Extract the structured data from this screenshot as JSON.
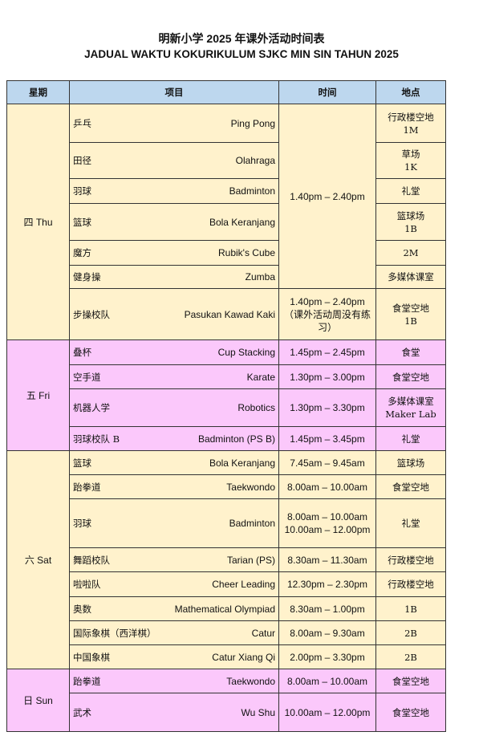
{
  "title_zh": "明新小学 2025 年课外活动时间表",
  "title_ms": "JADUAL WAKTU KOKURIKULUM SJKC MIN SIN TAHUN 2025",
  "headers": {
    "day": "星期",
    "activity": "项目",
    "time": "时间",
    "location": "地点"
  },
  "colors": {
    "header": "#bdd7ee",
    "cream": "#fff2cc",
    "pink": "#fbc8fb"
  },
  "days": [
    {
      "label": "四 Thu",
      "color": "cream",
      "rows": [
        {
          "zh": "乒乓",
          "ms": "Ping Pong",
          "time": "1.40pm – 2.40pm",
          "time_span": 6,
          "loc": "行政楼空地\n1M"
        },
        {
          "zh": "田径",
          "ms": "Olahraga",
          "loc": "草场\n1K"
        },
        {
          "zh": "羽球",
          "ms": "Badminton",
          "loc": "礼堂"
        },
        {
          "zh": "篮球",
          "ms": "Bola Keranjang",
          "loc": "篮球场\n1B"
        },
        {
          "zh": "魔方",
          "ms": "Rubik's Cube",
          "loc": "2M"
        },
        {
          "zh": "健身操",
          "ms": "Zumba",
          "loc": "多媒体课室"
        },
        {
          "zh": "步操校队",
          "ms": "Pasukan Kawad Kaki",
          "time": "1.40pm – 2.40pm\n（课外活动周没有练习）",
          "loc": "食堂空地\n1B"
        }
      ]
    },
    {
      "label": "五 Fri",
      "color": "pink",
      "rows": [
        {
          "zh": "叠杯",
          "ms": "Cup Stacking",
          "time": "1.45pm – 2.45pm",
          "loc": "食堂"
        },
        {
          "zh": "空手道",
          "ms": "Karate",
          "time": "1.30pm – 3.00pm",
          "loc": "食堂空地"
        },
        {
          "zh": "机器人学",
          "ms": "Robotics",
          "time": "1.30pm – 3.30pm",
          "loc": "多媒体课室\nMaker Lab"
        },
        {
          "zh": "羽球校队 B",
          "ms": "Badminton (PS B)",
          "time": "1.45pm – 3.45pm",
          "loc": "礼堂"
        }
      ]
    },
    {
      "label": "六 Sat",
      "color": "cream",
      "rows": [
        {
          "zh": "篮球",
          "ms": "Bola Keranjang",
          "time": "7.45am – 9.45am",
          "loc": "篮球场"
        },
        {
          "zh": "跆拳道",
          "ms": "Taekwondo",
          "time": "8.00am – 10.00am",
          "loc": "食堂空地"
        },
        {
          "zh": "羽球",
          "ms": "Badminton",
          "time": "8.00am – 10.00am\n10.00am – 12.00pm",
          "loc": "礼堂"
        },
        {
          "zh": "舞蹈校队",
          "ms": "Tarian (PS)",
          "time": "8.30am – 11.30am",
          "loc": "行政楼空地"
        },
        {
          "zh": "啦啦队",
          "ms": "Cheer Leading",
          "time": "12.30pm – 2.30pm",
          "loc": "行政楼空地"
        },
        {
          "zh": "奥数",
          "ms": "Mathematical Olympiad",
          "time": "8.30am – 1.00pm",
          "loc": "1B"
        },
        {
          "zh": "国际象棋（西洋棋）",
          "ms": "Catur",
          "time": "8.00am – 9.30am",
          "loc": "2B"
        },
        {
          "zh": "中国象棋",
          "ms": "Catur Xiang Qi",
          "time": "2.00pm – 3.30pm",
          "loc": "2B"
        }
      ]
    },
    {
      "label": "日 Sun",
      "color": "pink",
      "rows": [
        {
          "zh": "跆拳道",
          "ms": "Taekwondo",
          "time": "8.00am – 10.00am",
          "loc": "食堂空地"
        },
        {
          "zh": "武术",
          "ms": "Wu Shu",
          "time": "10.00am – 12.00pm",
          "loc": "食堂空地"
        }
      ]
    }
  ]
}
